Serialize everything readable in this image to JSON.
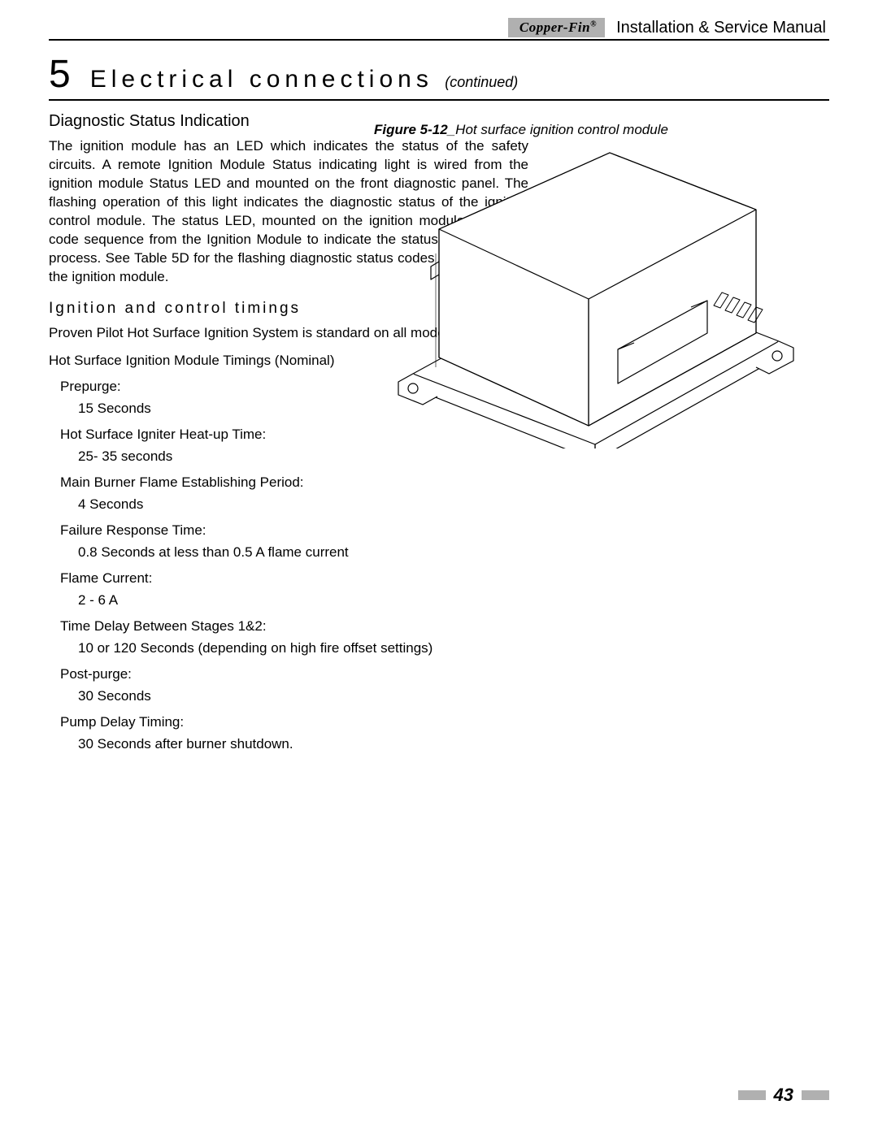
{
  "header": {
    "brand": "Copper-Fin",
    "brand_suffix": "®",
    "doc_title": "Installation & Service Manual"
  },
  "chapter": {
    "number": "5",
    "title": "Electrical connections",
    "continued": "(continued)"
  },
  "section1": {
    "heading": "Diagnostic Status Indication",
    "para": "The ignition module has an LED which indicates the status of the safety circuits. A remote Ignition Module Status indicating light is wired from the ignition module Status LED and mounted on the front diagnostic panel. The flashing operation of this light indicates the diagnostic status of the ignition control module. The status LED, mounted on the ignition module flashes a code sequence from the Ignition Module to indicate the status of the ignition process. See Table 5D for the flashing diagnostic status codes as signaled by the ignition module."
  },
  "section2": {
    "heading": "Ignition and control timings",
    "para1": "Proven Pilot Hot Surface Ignition System is standard on all models.",
    "para2": "Hot Surface Ignition Module Timings (Nominal)",
    "items": [
      {
        "label": "Prepurge:",
        "value": "15 Seconds"
      },
      {
        "label": "Hot Surface Igniter Heat-up Time:",
        "value": "25- 35 seconds"
      },
      {
        "label": "Main Burner Flame Establishing Period:",
        "value": "4 Seconds"
      },
      {
        "label": "Failure Response Time:",
        "value": "0.8 Seconds at less than 0.5  A flame current"
      },
      {
        "label": "Flame Current:",
        "value": "2 - 6  A"
      },
      {
        "label": "Time Delay Between Stages 1&2:",
        "value": "10 or 120 Seconds (depending on high fire offset settings)"
      },
      {
        "label": "Post-purge:",
        "value": "30 Seconds"
      },
      {
        "label": "Pump Delay Timing:",
        "value": "30 Seconds after burner shutdown."
      }
    ]
  },
  "figure": {
    "ref": "Figure 5-12",
    "sep": "_",
    "caption": "Hot surface ignition control module"
  },
  "footer": {
    "page": "43"
  },
  "style": {
    "line_color": "#000000",
    "gray": "#b0b0b0"
  }
}
